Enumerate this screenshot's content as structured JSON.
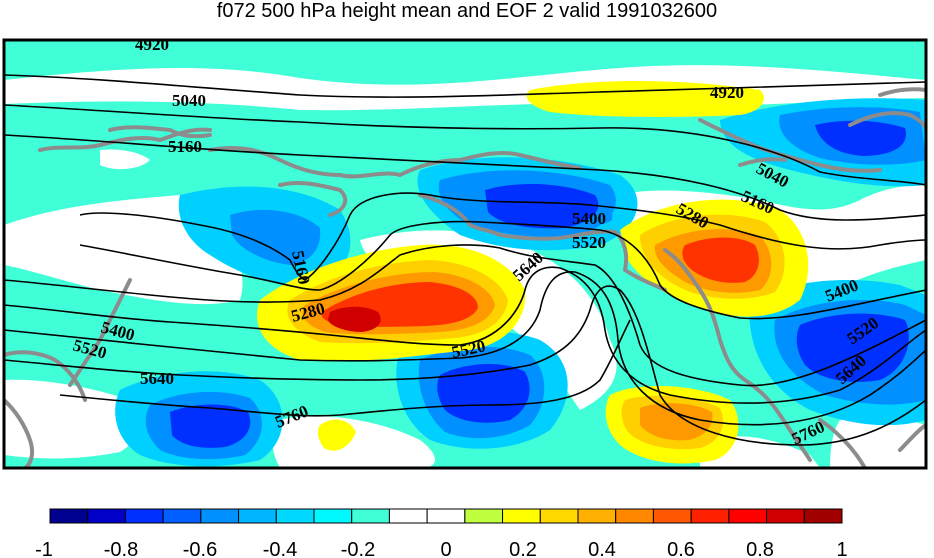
{
  "title": "f072 500 hPa height mean and EOF 2 valid 1991032600",
  "contour_labels": [
    "4920",
    "4920",
    "5040",
    "5040",
    "5160",
    "5160",
    "5160",
    "5280",
    "5280",
    "5400",
    "5400",
    "5400",
    "5520",
    "5520",
    "5520",
    "5520",
    "5640",
    "5640",
    "5640",
    "5760",
    "5760"
  ],
  "colorbar": {
    "ticks": [
      "-1",
      "-0.8",
      "-0.6",
      "-0.4",
      "-0.2",
      "0",
      "0.2",
      "0.4",
      "0.6",
      "0.8",
      "1"
    ],
    "colors": [
      "#00008f",
      "#0000c8",
      "#0030ff",
      "#0060ff",
      "#0090ff",
      "#00b6ff",
      "#00d8ff",
      "#00f8ff",
      "#40ffd8",
      "#ffffff",
      "#ffffff",
      "#c0ff40",
      "#ffff00",
      "#ffd800",
      "#ffb000",
      "#ff8800",
      "#ff5800",
      "#ff2000",
      "#ff0000",
      "#d00000",
      "#a00000"
    ]
  },
  "colors": {
    "coastline": "#8c8c8c",
    "contour": "#000000",
    "blue_dark": "#0030ff",
    "blue_mid": "#0090ff",
    "blue_light": "#00d0ff",
    "teal": "#40ffd8",
    "yellow": "#ffff00",
    "orange": "#ff9900",
    "red": "#ff3300",
    "deep_red": "#d00000"
  }
}
